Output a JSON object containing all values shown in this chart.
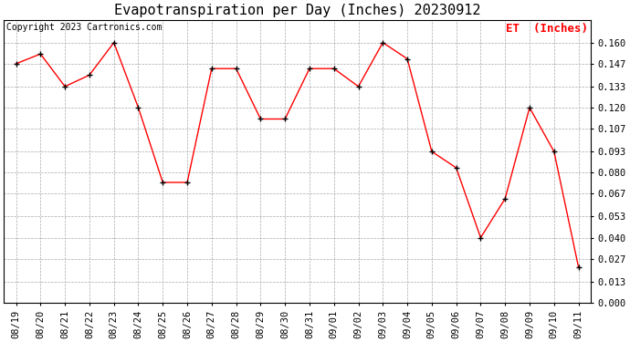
{
  "title": "Evapotranspiration per Day (Inches) 20230912",
  "copyright": "Copyright 2023 Cartronics.com",
  "legend_label": "ET  (Inches)",
  "dates": [
    "08/19",
    "08/20",
    "08/21",
    "08/22",
    "08/23",
    "08/24",
    "08/25",
    "08/26",
    "08/27",
    "08/28",
    "08/29",
    "08/30",
    "08/31",
    "09/01",
    "09/02",
    "09/03",
    "09/04",
    "09/05",
    "09/06",
    "09/07",
    "09/08",
    "09/09",
    "09/10",
    "09/11"
  ],
  "values": [
    0.147,
    0.153,
    0.133,
    0.14,
    0.16,
    0.12,
    0.074,
    0.074,
    0.144,
    0.144,
    0.113,
    0.113,
    0.144,
    0.144,
    0.133,
    0.16,
    0.15,
    0.093,
    0.083,
    0.04,
    0.064,
    0.12,
    0.093,
    0.022
  ],
  "line_color": "red",
  "marker_color": "black",
  "ylim": [
    0.0,
    0.174
  ],
  "yticks": [
    0.0,
    0.013,
    0.027,
    0.04,
    0.053,
    0.067,
    0.08,
    0.093,
    0.107,
    0.12,
    0.133,
    0.147,
    0.16
  ],
  "background_color": "#ffffff",
  "grid_color": "#aaaaaa",
  "title_fontsize": 11,
  "legend_fontsize": 9,
  "copyright_fontsize": 7,
  "tick_fontsize": 7.5,
  "border_color": "#000000"
}
